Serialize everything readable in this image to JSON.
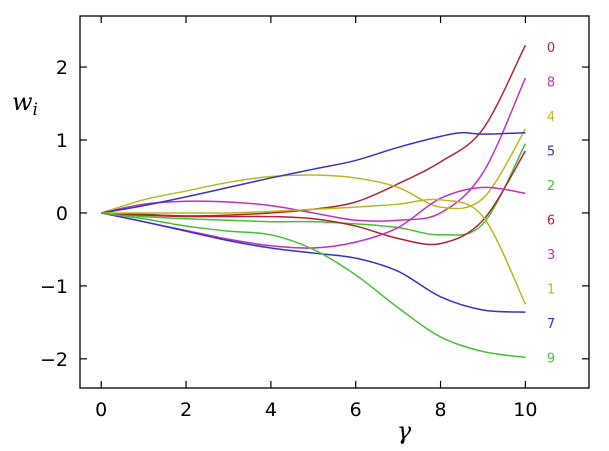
{
  "chart_data": {
    "type": "line",
    "title": "",
    "xlabel": "γ",
    "ylabel": "w",
    "ylabel_sub": "i",
    "xlim": [
      -0.5,
      11.5
    ],
    "ylim": [
      -2.4,
      2.7
    ],
    "xticks": [
      0,
      2,
      4,
      6,
      8,
      10
    ],
    "yticks": [
      -2,
      -1,
      0,
      1,
      2
    ],
    "ytick_labels": [
      "−2",
      "−1",
      "0",
      "1",
      "2"
    ],
    "grid": false,
    "legend": "right-labels",
    "series": [
      {
        "name": "0",
        "color": "#b02535",
        "x": [
          0,
          1,
          2,
          3,
          4,
          5,
          6,
          7,
          8,
          9,
          10
        ],
        "y": [
          0,
          -0.02,
          -0.04,
          -0.03,
          0.0,
          0.05,
          0.15,
          0.4,
          0.7,
          1.15,
          2.3
        ]
      },
      {
        "name": "8",
        "color": "#c030c0",
        "x": [
          0,
          1,
          2,
          3,
          4,
          5,
          6,
          7,
          8,
          9,
          10
        ],
        "y": [
          0,
          0.12,
          0.16,
          0.15,
          0.1,
          0.0,
          -0.1,
          -0.1,
          0.0,
          0.55,
          1.85
        ]
      },
      {
        "name": "4",
        "color": "#b8b820",
        "x": [
          0,
          1,
          2,
          3,
          4,
          5,
          6,
          7,
          8,
          9,
          10
        ],
        "y": [
          0,
          0.18,
          0.3,
          0.42,
          0.5,
          0.52,
          0.48,
          0.35,
          0.08,
          0.2,
          1.15
        ]
      },
      {
        "name": "5",
        "color": "#3535c0",
        "x": [
          0,
          1,
          2,
          3,
          4,
          5,
          6,
          7,
          8,
          8.5,
          9,
          10
        ],
        "y": [
          0,
          0.1,
          0.22,
          0.35,
          0.48,
          0.6,
          0.72,
          0.9,
          1.05,
          1.1,
          1.08,
          1.1
        ]
      },
      {
        "name": "2",
        "color": "#45c035",
        "x": [
          0,
          1,
          2,
          3,
          4,
          5,
          6,
          7,
          8,
          9,
          10
        ],
        "y": [
          0,
          -0.05,
          -0.08,
          -0.1,
          -0.12,
          -0.12,
          -0.15,
          -0.2,
          -0.3,
          -0.15,
          0.95
        ]
      },
      {
        "name": "6",
        "color": "#b02535",
        "x": [
          0,
          1,
          2,
          3,
          4,
          5,
          6,
          7,
          8,
          9,
          10
        ],
        "y": [
          0,
          -0.03,
          -0.05,
          -0.05,
          -0.05,
          -0.08,
          -0.18,
          -0.35,
          -0.42,
          -0.1,
          0.85
        ]
      },
      {
        "name": "3",
        "color": "#c030c0",
        "x": [
          0,
          1,
          2,
          3,
          4,
          5,
          6,
          7,
          8,
          9,
          10
        ],
        "y": [
          0,
          -0.12,
          -0.24,
          -0.36,
          -0.45,
          -0.48,
          -0.4,
          -0.2,
          0.2,
          0.35,
          0.27
        ]
      },
      {
        "name": "1",
        "color": "#b8b820",
        "x": [
          0,
          1,
          2,
          3,
          4,
          5,
          6,
          7,
          8,
          9,
          10
        ],
        "y": [
          0,
          0.0,
          0.0,
          0.0,
          0.02,
          0.05,
          0.08,
          0.12,
          0.18,
          -0.05,
          -1.25
        ]
      },
      {
        "name": "7",
        "color": "#3535c0",
        "x": [
          0,
          1,
          2,
          3,
          4,
          5,
          6,
          7,
          8,
          9,
          10
        ],
        "y": [
          0,
          -0.12,
          -0.25,
          -0.38,
          -0.48,
          -0.55,
          -0.62,
          -0.8,
          -1.15,
          -1.33,
          -1.36
        ]
      },
      {
        "name": "9",
        "color": "#45c035",
        "x": [
          0,
          1,
          2,
          3,
          4,
          5,
          6,
          7,
          8,
          9,
          10
        ],
        "y": [
          0,
          -0.08,
          -0.18,
          -0.25,
          -0.3,
          -0.5,
          -0.85,
          -1.3,
          -1.7,
          -1.9,
          -1.98
        ]
      }
    ]
  }
}
